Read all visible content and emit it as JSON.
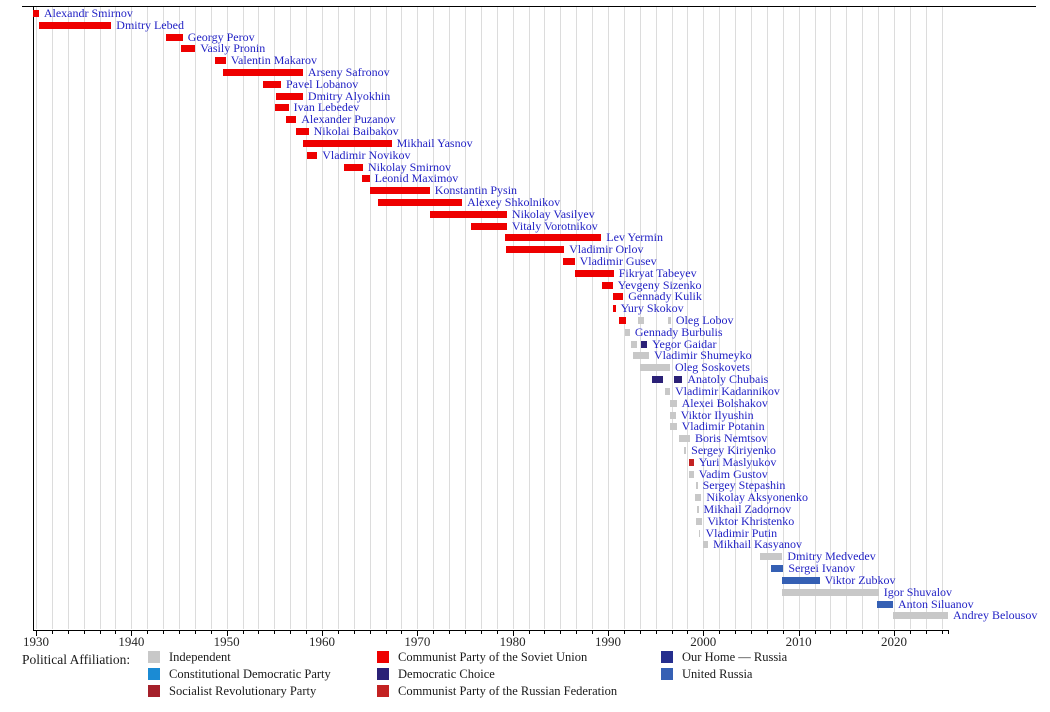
{
  "chart_data": {
    "type": "bar",
    "variant": "gantt-timeline",
    "title": "",
    "xlabel": "",
    "ylabel": "",
    "grid": true,
    "legend_position": "bottom",
    "legend_title": "Political Affiliation:",
    "x_axis": {
      "tick_years": [
        1930,
        1940,
        1950,
        1960,
        1970,
        1980,
        1990,
        2000,
        2010,
        2020
      ],
      "range_start": 1929.7,
      "range_end": 2025.7,
      "minor_division_years": 1.6667,
      "unit": "year"
    },
    "label_color": "#1f1fc4",
    "parties": [
      {
        "id": "IND",
        "label": "Independent",
        "color": "#c8c8c8"
      },
      {
        "id": "KD",
        "label": "Constitutional Democratic Party",
        "color": "#1b8bd4"
      },
      {
        "id": "SR",
        "label": "Socialist Revolutionary Party",
        "color": "#a5202a"
      },
      {
        "id": "CPSU",
        "label": "Communist Party of the Soviet Union",
        "color": "#ee0000"
      },
      {
        "id": "DC",
        "label": "Democratic Choice",
        "color": "#2b2177"
      },
      {
        "id": "CPRF",
        "label": "Communist Party of the Russian Federation",
        "color": "#c32222"
      },
      {
        "id": "OHR",
        "label": "Our Home — Russia",
        "color": "#252e8e"
      },
      {
        "id": "UR",
        "label": "United Russia",
        "color": "#3560b4"
      }
    ],
    "legend_columns": [
      [
        "IND",
        "KD",
        "SR"
      ],
      [
        "CPSU",
        "DC",
        "CPRF"
      ],
      [
        "OHR",
        "UR"
      ]
    ],
    "people": [
      {
        "name": "Alexandr Smirnov",
        "segments": [
          [
            1929.7,
            1930.3,
            "CPSU"
          ]
        ]
      },
      {
        "name": "Dmitry Lebed",
        "segments": [
          [
            1930.3,
            1937.9,
            "CPSU"
          ]
        ]
      },
      {
        "name": "Georgy Perov",
        "segments": [
          [
            1943.6,
            1945.4,
            "CPSU"
          ]
        ]
      },
      {
        "name": "Vasily Pronin",
        "segments": [
          [
            1945.2,
            1946.7,
            "CPSU"
          ]
        ]
      },
      {
        "name": "Valentin Makarov",
        "segments": [
          [
            1948.8,
            1949.9,
            "CPSU"
          ]
        ]
      },
      {
        "name": "Arseny Safronov",
        "segments": [
          [
            1949.6,
            1958.0,
            "CPSU"
          ]
        ]
      },
      {
        "name": "Pavel Lobanov",
        "segments": [
          [
            1953.8,
            1955.7,
            "CPSU"
          ]
        ]
      },
      {
        "name": "Dmitry Alyokhin",
        "segments": [
          [
            1955.2,
            1958.0,
            "CPSU"
          ]
        ]
      },
      {
        "name": "Ivan Lebedev",
        "segments": [
          [
            1955.1,
            1956.5,
            "CPSU"
          ]
        ]
      },
      {
        "name": "Alexander Puzanov",
        "segments": [
          [
            1956.2,
            1957.3,
            "CPSU"
          ]
        ]
      },
      {
        "name": "Nikolai Baibakov",
        "segments": [
          [
            1957.3,
            1958.6,
            "CPSU"
          ]
        ]
      },
      {
        "name": "Mikhail Yasnov",
        "segments": [
          [
            1958.0,
            1967.3,
            "CPSU"
          ]
        ]
      },
      {
        "name": "Vladimir Novikov",
        "segments": [
          [
            1958.4,
            1959.5,
            "CPSU"
          ]
        ]
      },
      {
        "name": "Nikolay Smirnov",
        "segments": [
          [
            1962.3,
            1964.3,
            "CPSU"
          ]
        ]
      },
      {
        "name": "Leonid Maximov",
        "segments": [
          [
            1964.2,
            1965.0,
            "CPSU"
          ]
        ]
      },
      {
        "name": "Konstantin Pysin",
        "segments": [
          [
            1965.0,
            1971.3,
            "CPSU"
          ]
        ]
      },
      {
        "name": "Alexey Shkolnikov",
        "segments": [
          [
            1965.9,
            1974.7,
            "CPSU"
          ]
        ]
      },
      {
        "name": "Nikolay Vasilyev",
        "segments": [
          [
            1971.3,
            1979.4,
            "CPSU"
          ]
        ]
      },
      {
        "name": "Vitaly Vorotnikov",
        "segments": [
          [
            1975.6,
            1979.4,
            "CPSU"
          ]
        ]
      },
      {
        "name": "Lev Yermin",
        "segments": [
          [
            1979.2,
            1989.3,
            "CPSU"
          ]
        ]
      },
      {
        "name": "Vladimir Orlov",
        "segments": [
          [
            1979.3,
            1985.4,
            "CPSU"
          ]
        ]
      },
      {
        "name": "Vladimir Gusev",
        "segments": [
          [
            1985.3,
            1986.5,
            "CPSU"
          ]
        ]
      },
      {
        "name": "Fikryat Tabeyev",
        "segments": [
          [
            1986.5,
            1990.6,
            "CPSU"
          ]
        ]
      },
      {
        "name": "Yevgeny Sizenko",
        "segments": [
          [
            1989.4,
            1990.5,
            "CPSU"
          ]
        ]
      },
      {
        "name": "Gennady Kulik",
        "segments": [
          [
            1990.5,
            1991.6,
            "CPSU"
          ]
        ]
      },
      {
        "name": "Yury Skokov",
        "segments": [
          [
            1990.5,
            1990.8,
            "CPSU"
          ]
        ]
      },
      {
        "name": "Oleg Lobov",
        "segments": [
          [
            1991.2,
            1991.9,
            "CPSU"
          ],
          [
            1993.2,
            1993.8,
            "IND"
          ],
          [
            1996.3,
            1996.6,
            "IND"
          ]
        ]
      },
      {
        "name": "Gennady Burbulis",
        "segments": [
          [
            1991.8,
            1992.3,
            "IND"
          ]
        ]
      },
      {
        "name": "Yegor Gaidar",
        "segments": [
          [
            1992.4,
            1993.0,
            "IND"
          ],
          [
            1993.5,
            1994.1,
            "DC"
          ]
        ]
      },
      {
        "name": "Vladimir Shumeyko",
        "segments": [
          [
            1992.6,
            1994.3,
            "IND"
          ]
        ]
      },
      {
        "name": "Oleg Soskovets",
        "segments": [
          [
            1993.4,
            1996.5,
            "IND"
          ]
        ]
      },
      {
        "name": "Anatoly Chubais",
        "segments": [
          [
            1994.6,
            1995.8,
            "DC"
          ],
          [
            1996.9,
            1997.8,
            "DC"
          ]
        ]
      },
      {
        "name": "Vladimir Kadannikov",
        "segments": [
          [
            1996.0,
            1996.5,
            "IND"
          ]
        ]
      },
      {
        "name": "Alexei Bolshakov",
        "segments": [
          [
            1996.5,
            1997.2,
            "IND"
          ]
        ]
      },
      {
        "name": "Viktor Ilyushin",
        "segments": [
          [
            1996.5,
            1997.1,
            "IND"
          ]
        ]
      },
      {
        "name": "Vladimir Potanin",
        "segments": [
          [
            1996.5,
            1997.2,
            "IND"
          ]
        ]
      },
      {
        "name": "Boris Nemtsov",
        "segments": [
          [
            1997.4,
            1998.6,
            "IND"
          ]
        ]
      },
      {
        "name": "Sergey Kiriyenko",
        "segments": [
          [
            1998.0,
            1998.2,
            "IND"
          ]
        ]
      },
      {
        "name": "Yuri Maslyukov",
        "segments": [
          [
            1998.5,
            1999.0,
            "CPRF"
          ]
        ]
      },
      {
        "name": "Vadim Gustov",
        "segments": [
          [
            1998.5,
            1999.0,
            "IND"
          ]
        ]
      },
      {
        "name": "Sergey Stepashin",
        "segments": [
          [
            1999.2,
            1999.4,
            "IND"
          ]
        ]
      },
      {
        "name": "Nikolay Aksyonenko",
        "segments": [
          [
            1999.1,
            1999.8,
            "IND"
          ]
        ]
      },
      {
        "name": "Mikhail Zadornov",
        "segments": [
          [
            1999.3,
            1999.5,
            "IND"
          ]
        ]
      },
      {
        "name": "Viktor Khristenko",
        "segments": [
          [
            1999.2,
            1999.9,
            "IND"
          ]
        ]
      },
      {
        "name": "Vladimir Putin",
        "segments": [
          [
            1999.5,
            1999.7,
            "IND"
          ]
        ]
      },
      {
        "name": "Mikhail Kasyanov",
        "segments": [
          [
            2000.0,
            2000.5,
            "IND"
          ]
        ]
      },
      {
        "name": "Dmitry Medvedev",
        "segments": [
          [
            2005.9,
            2008.3,
            "IND"
          ]
        ]
      },
      {
        "name": "Sergei Ivanov",
        "segments": [
          [
            2007.1,
            2008.4,
            "UR"
          ]
        ]
      },
      {
        "name": "Viktor Zubkov",
        "segments": [
          [
            2008.3,
            2012.2,
            "UR"
          ]
        ]
      },
      {
        "name": "Igor Shuvalov",
        "segments": [
          [
            2008.3,
            2018.4,
            "IND"
          ]
        ]
      },
      {
        "name": "Anton Siluanov",
        "segments": [
          [
            2018.2,
            2019.9,
            "UR"
          ]
        ]
      },
      {
        "name": "Andrey Belousov",
        "segments": [
          [
            2019.9,
            2025.7,
            "IND"
          ]
        ]
      }
    ]
  },
  "colors": {
    "grid": "#dcdcdc",
    "axis": "#000000",
    "tick_text": "#262626",
    "name_label": "#1f1fc4"
  }
}
